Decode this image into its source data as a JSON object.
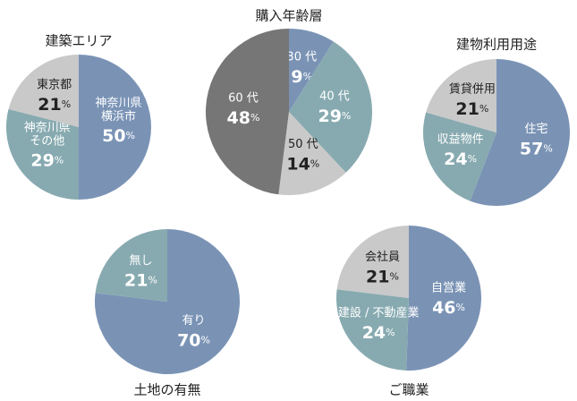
{
  "chart_data": [
    {
      "type": "pie",
      "title": "建築エリア",
      "categories": [
        "神奈川県\n横浜市",
        "神奈川県\nその他",
        "東京都"
      ],
      "values": [
        50,
        29,
        21
      ],
      "value_labels": [
        "50%",
        "29%",
        "21%"
      ],
      "colors": [
        "#7a93b5",
        "#87aab0",
        "#c9c9c9"
      ]
    },
    {
      "type": "pie",
      "title": "購入年齢層",
      "categories": [
        "30 代",
        "40 代",
        "50 代",
        "60 代"
      ],
      "values": [
        9,
        29,
        14,
        48
      ],
      "value_labels": [
        "9%",
        "29%",
        "14%",
        "48%"
      ],
      "colors": [
        "#7a93b5",
        "#87aab0",
        "#c9c9c9",
        "#767676"
      ]
    },
    {
      "type": "pie",
      "title": "建物利用用途",
      "categories": [
        "住宅",
        "収益物件",
        "賃貸併用"
      ],
      "values": [
        57,
        24,
        21
      ],
      "value_labels": [
        "57%",
        "24%",
        "21%"
      ],
      "colors": [
        "#7a93b5",
        "#87aab0",
        "#c9c9c9"
      ]
    },
    {
      "type": "pie",
      "title": "土地の有無",
      "categories": [
        "有り",
        "無し"
      ],
      "values": [
        70,
        21
      ],
      "value_labels": [
        "70%",
        "21%"
      ],
      "colors": [
        "#7a93b5",
        "#87aab0"
      ]
    },
    {
      "type": "pie",
      "title": "ご職業",
      "categories": [
        "自営業",
        "建設 / 不動産業",
        "会社員"
      ],
      "values": [
        46,
        24,
        21
      ],
      "value_labels": [
        "46%",
        "24%",
        "21%"
      ],
      "colors": [
        "#7a93b5",
        "#87aab0",
        "#c9c9c9"
      ]
    }
  ]
}
